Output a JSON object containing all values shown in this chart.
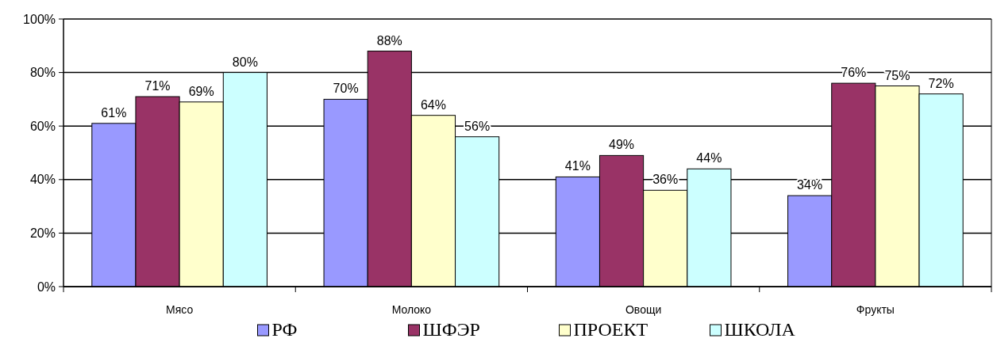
{
  "chart_data": {
    "type": "bar",
    "categories": [
      "Мясо",
      "Молоко",
      "Овощи",
      "Фрукты"
    ],
    "series": [
      {
        "name": "РФ",
        "color": "#9999ff",
        "values": [
          61,
          70,
          41,
          34
        ],
        "value_labels": [
          "61%",
          "70%",
          "41%",
          "34%"
        ]
      },
      {
        "name": "ШФЭР",
        "color": "#993366",
        "values": [
          71,
          88,
          49,
          76
        ],
        "value_labels": [
          "71%",
          "88%",
          "49%",
          "76%"
        ]
      },
      {
        "name": "ПРОЕКТ",
        "color": "#ffffcc",
        "values": [
          69,
          64,
          36,
          75
        ],
        "value_labels": [
          "69%",
          "64%",
          "36%",
          "75%"
        ]
      },
      {
        "name": "ШКОЛА",
        "color": "#ccffff",
        "values": [
          80,
          56,
          44,
          72
        ],
        "value_labels": [
          "80%",
          "56%",
          "44%",
          "72%"
        ]
      }
    ],
    "ylim": [
      0,
      100
    ],
    "yticks": [
      {
        "value": 0,
        "label": "0%"
      },
      {
        "value": 20,
        "label": "20%"
      },
      {
        "value": 40,
        "label": "40%"
      },
      {
        "value": 60,
        "label": "60%"
      },
      {
        "value": 80,
        "label": "80%"
      },
      {
        "value": 100,
        "label": "100%"
      }
    ],
    "grid": "y",
    "legend": "bottom"
  }
}
